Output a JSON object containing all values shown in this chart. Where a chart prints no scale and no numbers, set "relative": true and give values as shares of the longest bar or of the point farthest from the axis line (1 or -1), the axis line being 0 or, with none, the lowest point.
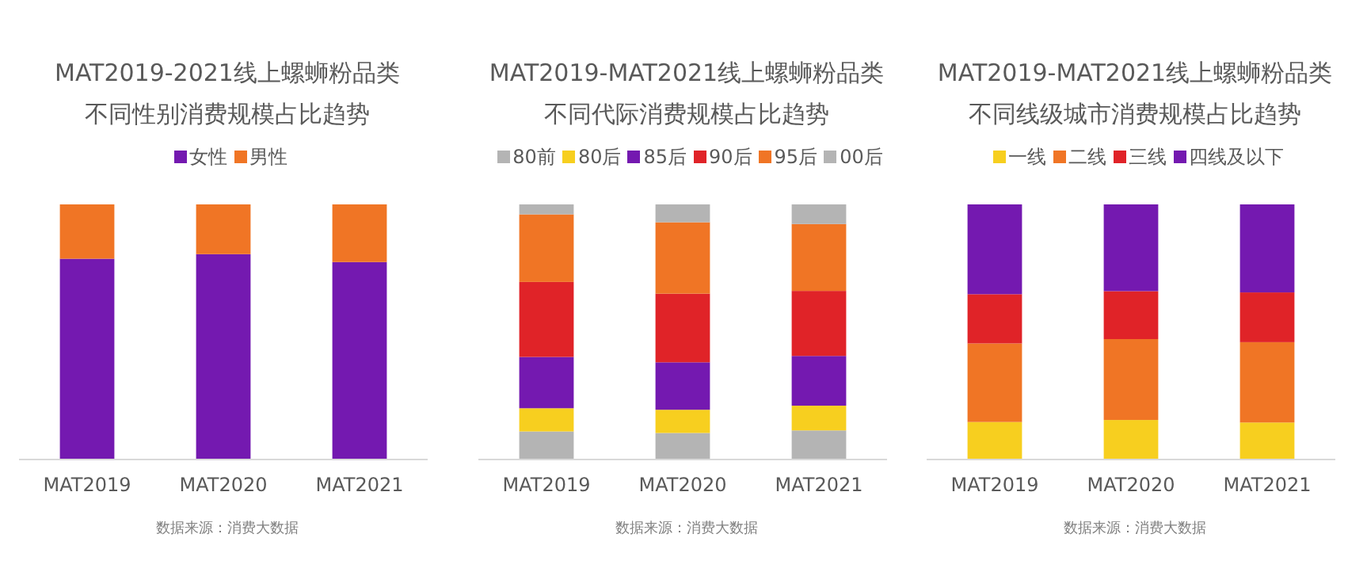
{
  "chart_data": [
    {
      "type": "bar",
      "title": "MAT2019-2021线上螺蛳粉品类不同性别消费规模占比趋势",
      "categories": [
        "MAT2019",
        "MAT2020",
        "MAT2021"
      ],
      "stacked": true,
      "relative": true,
      "legend": "top",
      "series": [
        {
          "name": "女性",
          "color": "#7419b0",
          "values": [
            0.787,
            0.805,
            0.774
          ]
        },
        {
          "name": "男性",
          "color": "#f07525",
          "values": [
            0.213,
            0.195,
            0.226
          ]
        }
      ],
      "annotations": [
        "数据来源：消费大数据"
      ]
    },
    {
      "type": "bar",
      "title": "MAT2019-MAT2021线上螺蛳粉品类不同代际消费规模占比趋势",
      "categories": [
        "MAT2019",
        "MAT2020",
        "MAT2021"
      ],
      "stacked": true,
      "relative": true,
      "legend": "top",
      "series": [
        {
          "name": "80前",
          "color": "#b4b4b4",
          "values": [
            0.11,
            0.104,
            0.114
          ]
        },
        {
          "name": "80后",
          "color": "#f7cf1f",
          "values": [
            0.091,
            0.091,
            0.097
          ]
        },
        {
          "name": "85后",
          "color": "#7419b0",
          "values": [
            0.201,
            0.186,
            0.195
          ]
        },
        {
          "name": "90后",
          "color": "#e02328",
          "values": [
            0.294,
            0.269,
            0.255
          ]
        },
        {
          "name": "95后",
          "color": "#f07525",
          "values": [
            0.265,
            0.28,
            0.262
          ]
        },
        {
          "name": "00后",
          "color": "#b4b4b4",
          "values": [
            0.039,
            0.07,
            0.077
          ]
        }
      ],
      "annotations": [
        "数据来源：消费大数据"
      ]
    },
    {
      "type": "bar",
      "title": "MAT2019-MAT2021线上螺蛳粉品类不同线级城市消费规模占比趋势",
      "categories": [
        "MAT2019",
        "MAT2020",
        "MAT2021"
      ],
      "stacked": true,
      "relative": true,
      "legend": "top",
      "series": [
        {
          "name": "一线",
          "color": "#f7cf1f",
          "values": [
            0.147,
            0.155,
            0.145
          ]
        },
        {
          "name": "二线",
          "color": "#f07525",
          "values": [
            0.308,
            0.317,
            0.315
          ]
        },
        {
          "name": "三线",
          "color": "#e02328",
          "values": [
            0.193,
            0.188,
            0.195
          ]
        },
        {
          "name": "四线及以下",
          "color": "#7419b0",
          "values": [
            0.352,
            0.34,
            0.345
          ]
        }
      ],
      "annotations": [
        "数据来源：消费大数据"
      ]
    }
  ]
}
